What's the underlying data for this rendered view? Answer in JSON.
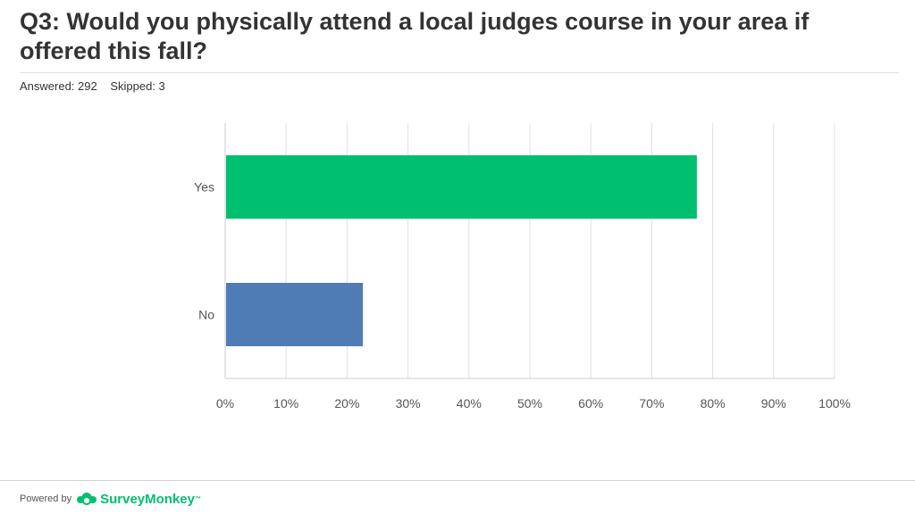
{
  "header": {
    "title": "Q3: Would you physically attend a local judges course in your area if offered this fall?",
    "answered": "Answered: 292",
    "skipped": "Skipped: 3"
  },
  "footer": {
    "powered_by": "Powered by",
    "brand": "SurveyMonkey",
    "brand_logo_icon": "surveymonkey-logo-icon"
  },
  "colors": {
    "yes_bar": "#00bf6f",
    "no_bar": "#507cb6",
    "grid": "#e0e0e0"
  },
  "chart_data": {
    "type": "bar",
    "orientation": "horizontal",
    "categories": [
      "Yes",
      "No"
    ],
    "values": [
      77.4,
      22.6
    ],
    "xlim": [
      0,
      100
    ],
    "xticks": [
      "0%",
      "10%",
      "20%",
      "30%",
      "40%",
      "50%",
      "60%",
      "70%",
      "80%",
      "90%",
      "100%"
    ],
    "grid": true
  }
}
